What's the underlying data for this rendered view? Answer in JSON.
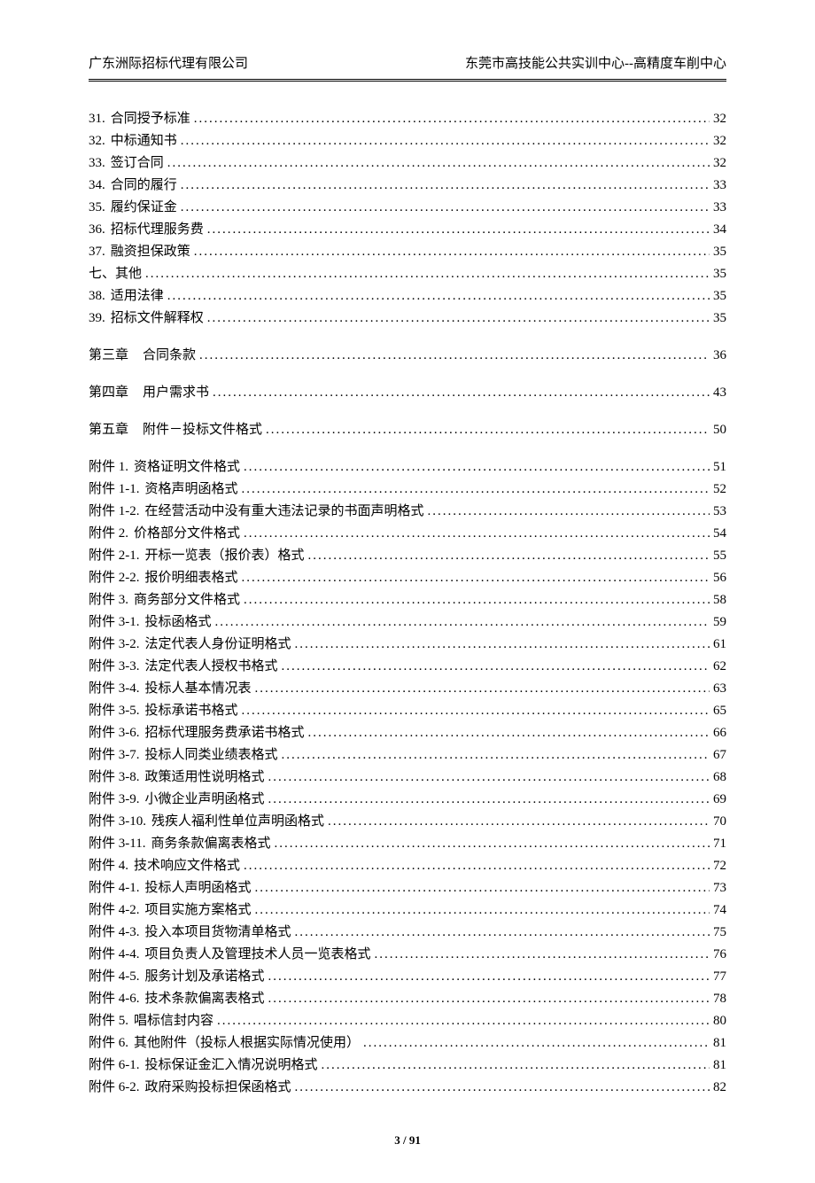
{
  "header": {
    "left": "广东洲际招标代理有限公司",
    "right": "东莞市高技能公共实训中心--高精度车削中心"
  },
  "entries": [
    {
      "label": "31.",
      "title": "合同授予标准",
      "page": "32",
      "type": "item"
    },
    {
      "label": "32.",
      "title": "中标通知书",
      "page": "32",
      "type": "item"
    },
    {
      "label": "33.",
      "title": "签订合同",
      "page": "32",
      "type": "item"
    },
    {
      "label": "34.",
      "title": "合同的履行",
      "page": "33",
      "type": "item"
    },
    {
      "label": "35.",
      "title": "履约保证金",
      "page": "33",
      "type": "item"
    },
    {
      "label": "36.",
      "title": "招标代理服务费",
      "page": "34",
      "type": "item"
    },
    {
      "label": "37.",
      "title": "融资担保政策",
      "page": "35",
      "type": "item"
    },
    {
      "label": "七、",
      "title": "其他",
      "page": "35",
      "type": "item-nolabel-gap"
    },
    {
      "label": "38.",
      "title": "适用法律",
      "page": "35",
      "type": "item"
    },
    {
      "label": "39.",
      "title": "招标文件解释权",
      "page": "35",
      "type": "item"
    },
    {
      "label": "第三章",
      "title": "合同条款",
      "page": "36",
      "type": "chapter"
    },
    {
      "label": "第四章",
      "title": "用户需求书",
      "page": "43",
      "type": "chapter"
    },
    {
      "label": "第五章",
      "title": "附件－投标文件格式",
      "page": "50",
      "type": "chapter"
    },
    {
      "label": "附件 1.",
      "title": "资格证明文件格式",
      "page": "51",
      "type": "item"
    },
    {
      "label": "附件 1-1.",
      "title": "资格声明函格式",
      "page": "52",
      "type": "item"
    },
    {
      "label": "附件 1-2.",
      "title": "在经营活动中没有重大违法记录的书面声明格式",
      "page": "53",
      "type": "item"
    },
    {
      "label": "附件 2.",
      "title": "价格部分文件格式",
      "page": "54",
      "type": "item"
    },
    {
      "label": "附件 2-1.",
      "title": "开标一览表（报价表）格式",
      "page": "55",
      "type": "item"
    },
    {
      "label": "附件 2-2.",
      "title": "报价明细表格式",
      "page": "56",
      "type": "item"
    },
    {
      "label": "附件 3.",
      "title": "商务部分文件格式",
      "page": "58",
      "type": "item"
    },
    {
      "label": "附件 3-1.",
      "title": "投标函格式",
      "page": "59",
      "type": "item"
    },
    {
      "label": "附件 3-2.",
      "title": "法定代表人身份证明格式",
      "page": "61",
      "type": "item"
    },
    {
      "label": "附件 3-3.",
      "title": "法定代表人授权书格式",
      "page": "62",
      "type": "item"
    },
    {
      "label": "附件 3-4.",
      "title": "投标人基本情况表",
      "page": "63",
      "type": "item"
    },
    {
      "label": "附件 3-5.",
      "title": "投标承诺书格式",
      "page": "65",
      "type": "item"
    },
    {
      "label": "附件 3-6.",
      "title": "招标代理服务费承诺书格式",
      "page": "66",
      "type": "item"
    },
    {
      "label": "附件 3-7.",
      "title": "投标人同类业绩表格式",
      "page": "67",
      "type": "item"
    },
    {
      "label": "附件 3-8.",
      "title": "政策适用性说明格式",
      "page": "68",
      "type": "item"
    },
    {
      "label": "附件 3-9.",
      "title": "小微企业声明函格式",
      "page": "69",
      "type": "item"
    },
    {
      "label": "附件 3-10.",
      "title": "残疾人福利性单位声明函格式",
      "page": "70",
      "type": "item"
    },
    {
      "label": "附件 3-11.",
      "title": "商务条款偏离表格式",
      "page": "71",
      "type": "item"
    },
    {
      "label": "附件 4.",
      "title": "技术响应文件格式",
      "page": "72",
      "type": "item"
    },
    {
      "label": "附件 4-1.",
      "title": "投标人声明函格式",
      "page": "73",
      "type": "item"
    },
    {
      "label": "附件 4-2.",
      "title": "项目实施方案格式",
      "page": "74",
      "type": "item"
    },
    {
      "label": "附件 4-3.",
      "title": "投入本项目货物清单格式",
      "page": "75",
      "type": "item"
    },
    {
      "label": "附件 4-4.",
      "title": "项目负责人及管理技术人员一览表格式",
      "page": "76",
      "type": "item"
    },
    {
      "label": "附件 4-5.",
      "title": "服务计划及承诺格式",
      "page": "77",
      "type": "item"
    },
    {
      "label": "附件 4-6.",
      "title": "技术条款偏离表格式",
      "page": "78",
      "type": "item"
    },
    {
      "label": "附件 5.",
      "title": "唱标信封内容",
      "page": "80",
      "type": "item"
    },
    {
      "label": "附件 6.",
      "title": "其他附件（投标人根据实际情况使用）",
      "page": "81",
      "type": "item"
    },
    {
      "label": "附件 6-1.",
      "title": "投标保证金汇入情况说明格式",
      "page": "81",
      "type": "item"
    },
    {
      "label": "附件 6-2.",
      "title": "政府采购投标担保函格式",
      "page": "82",
      "type": "item"
    }
  ],
  "footer": {
    "page_current": "3",
    "page_sep": " / ",
    "page_total": "91"
  }
}
